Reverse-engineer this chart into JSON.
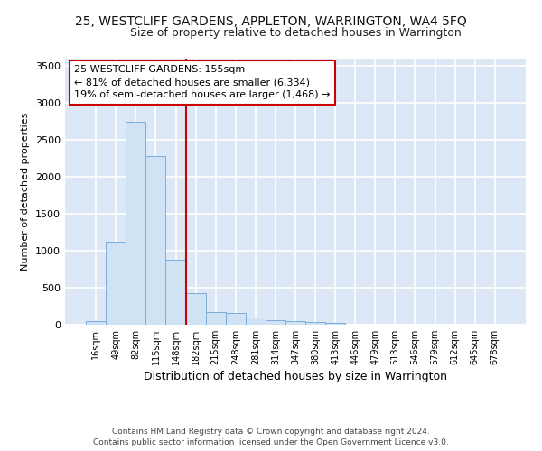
{
  "title": "25, WESTCLIFF GARDENS, APPLETON, WARRINGTON, WA4 5FQ",
  "subtitle": "Size of property relative to detached houses in Warrington",
  "xlabel": "Distribution of detached houses by size in Warrington",
  "ylabel": "Number of detached properties",
  "bin_labels": [
    "16sqm",
    "49sqm",
    "82sqm",
    "115sqm",
    "148sqm",
    "182sqm",
    "215sqm",
    "248sqm",
    "281sqm",
    "314sqm",
    "347sqm",
    "380sqm",
    "413sqm",
    "446sqm",
    "479sqm",
    "513sqm",
    "546sqm",
    "579sqm",
    "612sqm",
    "645sqm",
    "678sqm"
  ],
  "bar_heights": [
    50,
    1120,
    2740,
    2280,
    880,
    430,
    170,
    160,
    100,
    65,
    50,
    35,
    25,
    5,
    2,
    2,
    1,
    1,
    1,
    1,
    1
  ],
  "bar_color": "#d0e3f5",
  "bar_edge_color": "#7aacdc",
  "vline_x": 4.5,
  "vline_color": "#cc0000",
  "ylim": [
    0,
    3600
  ],
  "annotation_text": "25 WESTCLIFF GARDENS: 155sqm\n← 81% of detached houses are smaller (6,334)\n19% of semi-detached houses are larger (1,468) →",
  "annotation_box_color": "#ffffff",
  "annotation_border_color": "#cc0000",
  "footer_line1": "Contains HM Land Registry data © Crown copyright and database right 2024.",
  "footer_line2": "Contains public sector information licensed under the Open Government Licence v3.0.",
  "background_color": "#dce8f5",
  "grid_color": "#ffffff",
  "title_fontsize": 10,
  "subtitle_fontsize": 9,
  "yticks": [
    0,
    500,
    1000,
    1500,
    2000,
    2500,
    3000,
    3500
  ]
}
